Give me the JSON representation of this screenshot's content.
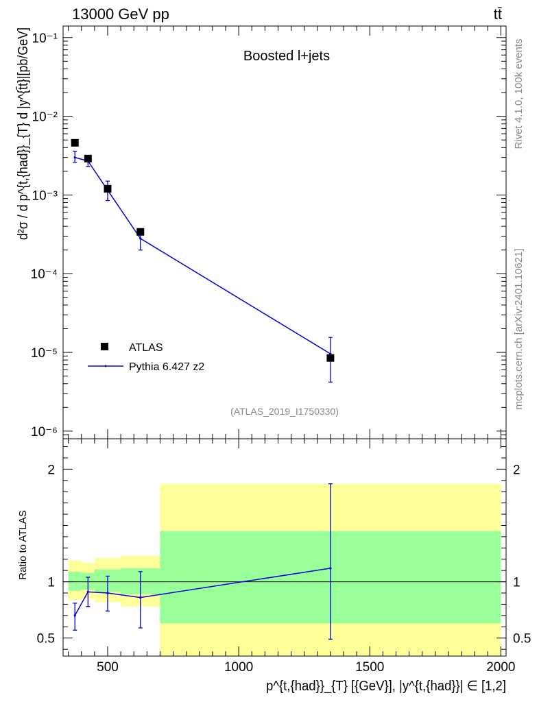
{
  "header": {
    "left": "13000 GeV pp",
    "right": "tt̄"
  },
  "side_labels": {
    "rivet": "Rivet 4.1.0,  100k events",
    "mcplots": "mcplots.cern.ch [arXiv:2401.10621]"
  },
  "chart_data": [
    {
      "type": "scatter",
      "panel": "main",
      "title": "Boosted l+jets",
      "watermark": "(ATLAS_2019_I1750330)",
      "ylabel": "d²σ / d p^{t,{had}}_{T} d |y^{t̄t}|[pb/GeV]",
      "yscale": "log",
      "ylim": [
        8e-07,
        0.14
      ],
      "xlim": [
        330,
        2020
      ],
      "y_tick_labels": [
        "10⁻⁶",
        "10⁻⁵",
        "10⁻⁴",
        "10⁻³",
        "10⁻²",
        "10⁻¹"
      ],
      "legend": {
        "position": "bottom-left",
        "entries": [
          "ATLAS",
          "Pythia 6.427 z2"
        ]
      },
      "series": [
        {
          "name": "ATLAS",
          "style": "black squares",
          "x": [
            375,
            425,
            500,
            625,
            1350
          ],
          "y": [
            0.0046,
            0.0029,
            0.0012,
            0.00034,
            8.5e-06
          ]
        },
        {
          "name": "Pythia 6.427 z2",
          "style": "blue line with error bars",
          "color": "#0000dd",
          "x": [
            375,
            425,
            500,
            625,
            1350
          ],
          "y": [
            0.003,
            0.0027,
            0.00115,
            0.00028,
            9.6e-06
          ],
          "err_low": [
            0.0026,
            0.0023,
            0.00085,
            0.0002,
            4.2e-06
          ],
          "err_high": [
            0.0036,
            0.0031,
            0.0015,
            0.00036,
            1.55e-05
          ]
        }
      ]
    },
    {
      "type": "line",
      "panel": "ratio",
      "ylabel": "Ratio to ATLAS",
      "xlabel": "p^{t,{had}}_{T} [{GeV}], |y^{t,{had}}| ∈ [1,2]",
      "ylim": [
        0.34,
        2.27
      ],
      "xlim": [
        330,
        2020
      ],
      "x_tick_labels": [
        "500",
        "1000",
        "1500",
        "2000"
      ],
      "y_tick_labels": [
        "0.5",
        "1",
        "2"
      ],
      "bands": [
        {
          "x0": 350,
          "x1": 400,
          "y_low": 0.84,
          "y_high": 1.19,
          "inner_low": 0.92,
          "inner_high": 1.09
        },
        {
          "x0": 400,
          "x1": 450,
          "y_low": 0.85,
          "y_high": 1.17,
          "inner_low": 0.93,
          "inner_high": 1.08
        },
        {
          "x0": 450,
          "x1": 550,
          "y_low": 0.82,
          "y_high": 1.21,
          "inner_low": 0.91,
          "inner_high": 1.11
        },
        {
          "x0": 550,
          "x1": 700,
          "y_low": 0.78,
          "y_high": 1.23,
          "inner_low": 0.89,
          "inner_high": 1.12
        },
        {
          "x0": 700,
          "x1": 2000,
          "y_low": 0.34,
          "y_high": 1.87,
          "inner_low": 0.63,
          "inner_high": 1.45
        }
      ],
      "series": [
        {
          "name": "Pythia 6.427 z2 / ATLAS",
          "color": "#0000dd",
          "x": [
            375,
            425,
            500,
            625,
            1350
          ],
          "y": [
            0.7,
            0.91,
            0.9,
            0.86,
            1.12
          ],
          "err_low": [
            0.57,
            0.78,
            0.74,
            0.59,
            0.49
          ],
          "err_high": [
            0.81,
            1.04,
            1.05,
            1.09,
            1.87
          ]
        }
      ]
    }
  ]
}
